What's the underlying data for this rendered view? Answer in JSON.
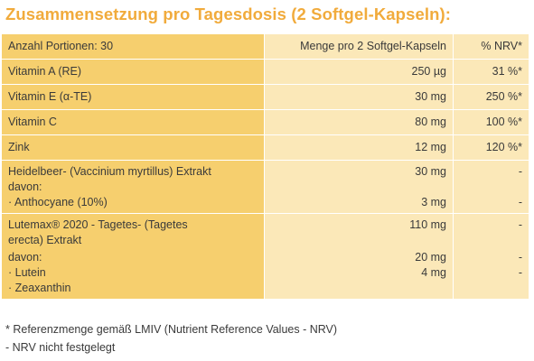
{
  "title": "Zusammensetzung pro Tagesdosis (2 Softgel-Kapseln):",
  "header": {
    "col1": "Anzahl Portionen: 30",
    "col2": "Menge pro 2 Softgel-Kapseln",
    "col3": "% NRV*"
  },
  "rows": [
    {
      "name": "Vitamin A (RE)",
      "amount": "250 µg",
      "nrv": "31 %*"
    },
    {
      "name": "Vitamin E (α-TE)",
      "amount": "30 mg",
      "nrv": "250 %*"
    },
    {
      "name": "Vitamin C",
      "amount": "80 mg",
      "nrv": "100 %*"
    },
    {
      "name": "Zink",
      "amount": "12 mg",
      "nrv": "120 %*"
    }
  ],
  "heidelbeer": {
    "line1": "Heidelbeer- (Vaccinium myrtillus) Extrakt",
    "line2": "davon:",
    "line3": "· Anthocyane (10%)",
    "amount1": "30 mg",
    "amount3": "3 mg",
    "nrv1": "-",
    "nrv3": "-"
  },
  "lutemax": {
    "line1": "Lutemax® 2020 - Tagetes- (Tagetes",
    "line2": "erecta) Extrakt",
    "line3": "davon:",
    "line4": "· Lutein",
    "line5": "· Zeaxanthin",
    "amount1": "110 mg",
    "amount3": "20 mg",
    "amount4": "4 mg",
    "nrv1": "-",
    "nrv3": "-",
    "nrv4": "-"
  },
  "footnotes": [
    "* Referenzmenge gemäß LMIV (Nutrient Reference Values - NRV)",
    "- NRV nicht festgelegt"
  ]
}
